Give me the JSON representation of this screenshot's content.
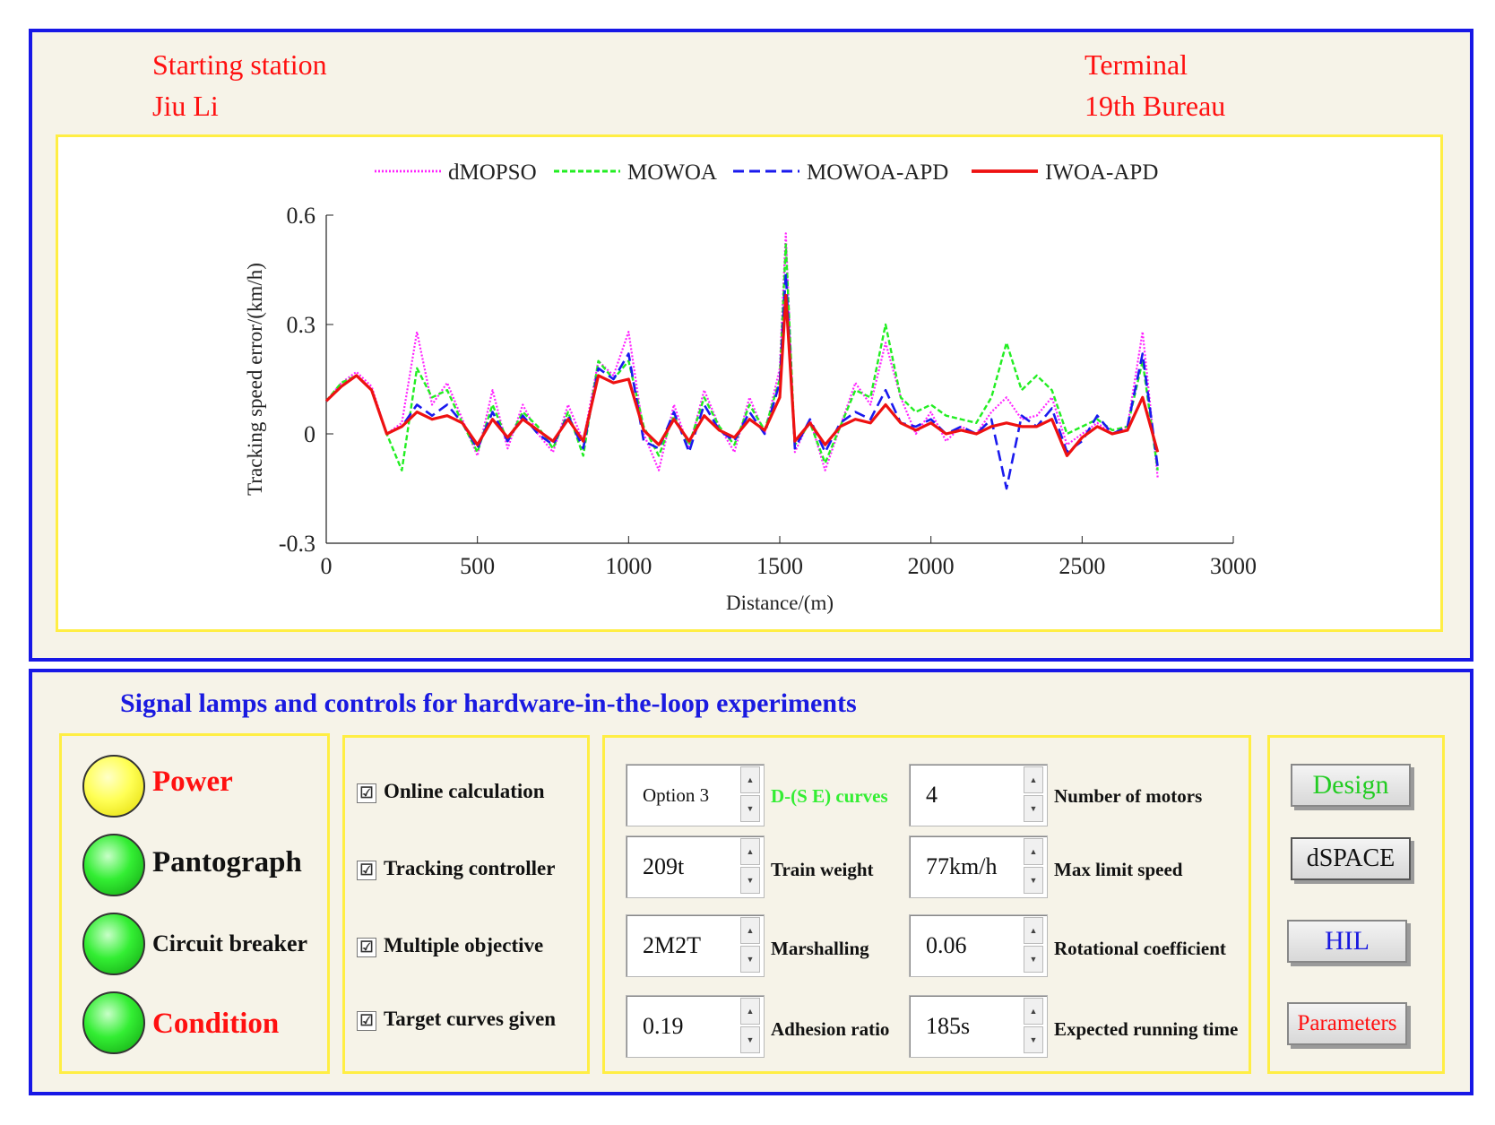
{
  "header": {
    "start_label": "Starting station",
    "start_name": "Jiu Li",
    "end_label": "Terminal",
    "end_name": "19th Bureau"
  },
  "chart_data": {
    "type": "line",
    "title": "",
    "xlabel": "Distance/(m)",
    "ylabel": "Tracking speed error/(km/h)",
    "xlim": [
      0,
      3000
    ],
    "ylim": [
      -0.3,
      0.6
    ],
    "xticks": [
      0,
      500,
      1000,
      1500,
      2000,
      2500,
      3000
    ],
    "yticks": [
      -0.3,
      0,
      0.3,
      0.6
    ],
    "x": [
      0,
      50,
      100,
      150,
      200,
      250,
      300,
      350,
      400,
      450,
      500,
      550,
      600,
      650,
      700,
      750,
      800,
      850,
      900,
      950,
      1000,
      1050,
      1100,
      1150,
      1200,
      1250,
      1300,
      1350,
      1400,
      1450,
      1500,
      1520,
      1550,
      1600,
      1650,
      1700,
      1750,
      1800,
      1850,
      1900,
      1950,
      2000,
      2050,
      2100,
      2150,
      2200,
      2250,
      2300,
      2350,
      2400,
      2450,
      2500,
      2550,
      2600,
      2650,
      2700,
      2750
    ],
    "series": [
      {
        "name": "dMOPSO",
        "color": "#ff22ff",
        "dash": "2,2",
        "values": [
          0.09,
          0.14,
          0.17,
          0.13,
          0.0,
          0.03,
          0.28,
          0.08,
          0.14,
          0.04,
          -0.06,
          0.12,
          -0.04,
          0.08,
          0.0,
          -0.05,
          0.08,
          -0.02,
          0.2,
          0.16,
          0.28,
          0.0,
          -0.1,
          0.08,
          -0.04,
          0.12,
          0.02,
          -0.05,
          0.1,
          0.0,
          0.18,
          0.55,
          -0.05,
          0.04,
          -0.1,
          0.02,
          0.14,
          0.08,
          0.25,
          0.1,
          0.0,
          0.06,
          -0.02,
          0.02,
          0.0,
          0.06,
          0.1,
          0.04,
          0.05,
          0.1,
          -0.03,
          0.0,
          0.03,
          0.0,
          0.02,
          0.28,
          -0.12
        ]
      },
      {
        "name": "MOWOA",
        "color": "#22ee22",
        "dash": "6,3",
        "values": [
          0.09,
          0.14,
          0.16,
          0.12,
          0.0,
          -0.1,
          0.18,
          0.1,
          0.12,
          0.03,
          -0.05,
          0.08,
          -0.02,
          0.06,
          0.02,
          -0.04,
          0.06,
          -0.06,
          0.2,
          0.15,
          0.2,
          0.02,
          -0.06,
          0.05,
          -0.03,
          0.1,
          0.02,
          -0.03,
          0.08,
          0.01,
          0.15,
          0.52,
          -0.03,
          0.03,
          -0.08,
          0.02,
          0.12,
          0.1,
          0.3,
          0.1,
          0.06,
          0.08,
          0.05,
          0.04,
          0.03,
          0.1,
          0.25,
          0.12,
          0.16,
          0.12,
          0.0,
          0.02,
          0.04,
          0.01,
          0.02,
          0.2,
          -0.1
        ]
      },
      {
        "name": "MOWOA-APD",
        "color": "#1a1aee",
        "dash": "12,6",
        "values": [
          0.09,
          0.13,
          0.16,
          0.12,
          0.0,
          0.02,
          0.08,
          0.05,
          0.08,
          0.03,
          -0.04,
          0.06,
          -0.02,
          0.05,
          0.0,
          -0.03,
          0.05,
          -0.04,
          0.18,
          0.15,
          0.22,
          -0.02,
          -0.04,
          0.06,
          -0.05,
          0.08,
          0.01,
          -0.02,
          0.06,
          0.0,
          0.14,
          0.44,
          -0.04,
          0.04,
          -0.05,
          0.03,
          0.06,
          0.04,
          0.12,
          0.03,
          0.02,
          0.04,
          0.0,
          0.02,
          0.0,
          0.04,
          -0.15,
          0.05,
          0.02,
          0.07,
          -0.05,
          -0.02,
          0.05,
          0.0,
          0.02,
          0.22,
          -0.09
        ]
      },
      {
        "name": "IWOA-APD",
        "color": "#ee1111",
        "dash": "",
        "values": [
          0.09,
          0.13,
          0.16,
          0.12,
          0.0,
          0.02,
          0.06,
          0.04,
          0.05,
          0.03,
          -0.03,
          0.04,
          -0.01,
          0.04,
          0.01,
          -0.02,
          0.04,
          -0.02,
          0.16,
          0.14,
          0.15,
          0.01,
          -0.03,
          0.04,
          -0.02,
          0.05,
          0.01,
          -0.01,
          0.04,
          0.01,
          0.1,
          0.38,
          -0.02,
          0.03,
          -0.03,
          0.02,
          0.04,
          0.03,
          0.08,
          0.03,
          0.01,
          0.03,
          0.0,
          0.01,
          0.0,
          0.02,
          0.03,
          0.02,
          0.02,
          0.04,
          -0.06,
          -0.01,
          0.02,
          0.0,
          0.01,
          0.1,
          -0.05
        ]
      }
    ],
    "legend_position": "top"
  },
  "hil": {
    "title": "Signal lamps and controls for hardware-in-the-loop experiments",
    "lamps": [
      {
        "label": "Power",
        "color": "yellow",
        "label_color": "#ff1010"
      },
      {
        "label": "Pantograph",
        "color": "green",
        "label_color": "#111111"
      },
      {
        "label": "Circuit breaker",
        "color": "green",
        "label_color": "#111111"
      },
      {
        "label": "Condition",
        "color": "green",
        "label_color": "#ff1010"
      }
    ],
    "checks": [
      {
        "label": "Online calculation",
        "checked": true
      },
      {
        "label": "Tracking controller",
        "checked": true
      },
      {
        "label": "Multiple objective",
        "checked": true
      },
      {
        "label": "Target curves given",
        "checked": true
      }
    ],
    "check_glyph": "☑",
    "spin_up": "▲",
    "spin_down": "▼",
    "params_left": [
      {
        "value": "Option 3",
        "label": "D-(S E) curves",
        "label_color": "#33ee33"
      },
      {
        "value": "209t",
        "label": "Train weight",
        "label_color": "#111111"
      },
      {
        "value": "2M2T",
        "label": "Marshalling",
        "label_color": "#111111"
      },
      {
        "value": "0.19",
        "label": "Adhesion ratio",
        "label_color": "#111111"
      }
    ],
    "params_right": [
      {
        "value": "4",
        "label": "Number of motors"
      },
      {
        "value": "77km/h",
        "label": "Max limit speed"
      },
      {
        "value": "0.06",
        "label": "Rotational coefficient"
      },
      {
        "value": "185s",
        "label": "Expected running time"
      }
    ],
    "buttons": [
      {
        "label": "Design",
        "color": "#22cc22"
      },
      {
        "label": "dSPACE",
        "color": "#111111"
      },
      {
        "label": "HIL",
        "color": "#1a1ae0"
      },
      {
        "label": "Parameters",
        "color": "#ff1010"
      }
    ]
  }
}
